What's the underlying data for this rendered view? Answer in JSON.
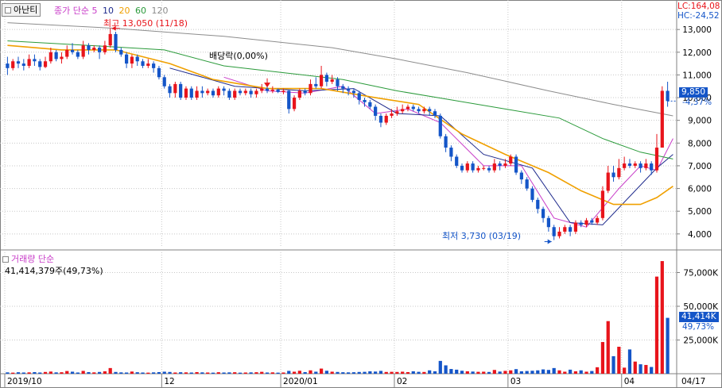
{
  "header": {
    "stock_name": "아난티",
    "price_legend": {
      "label": "종가 단순",
      "ma": [
        "5",
        "10",
        "20",
        "60",
        "120"
      ]
    },
    "lc": "LC:164,08",
    "hc": "HC:-24,52"
  },
  "volume_header": {
    "label": "거래량 단순",
    "value": "41,414,379주(49,73%)"
  },
  "badges": {
    "price": "9,850",
    "price_change": "-4,37%",
    "volume": "41,414K",
    "volume_pct": "49,73%"
  },
  "annotations": {
    "high": "최고 13,050 (11/18)",
    "dividend": "배당락(0,00%)",
    "low": "최저 3,730 (03/19)"
  },
  "colors": {
    "up": "#e8141b",
    "down": "#1455c8",
    "ma5": "#c83cc8",
    "ma10": "#1e2a8c",
    "ma20": "#f0a000",
    "ma60": "#2a9a3a",
    "ma120": "#8c8c8c",
    "grid": "#c8c8c8"
  },
  "chart_data": [
    {
      "type": "candlestick",
      "title": "아난티",
      "y_ticks": [
        "13,000",
        "12,000",
        "11,000",
        "10,000",
        "9,000",
        "8,000",
        "7,000",
        "6,000",
        "5,000",
        "4,000"
      ],
      "ylim": [
        3400,
        13600
      ],
      "x_tick_labels": [
        "2019/10",
        "12",
        "2020/01",
        "02",
        "03",
        "04",
        "04/17"
      ],
      "x_tick_index": [
        0,
        29,
        51,
        72,
        93,
        114
      ],
      "series_names": [
        "종가 단순 5",
        "10",
        "20",
        "60",
        "120"
      ],
      "candles": [
        [
          11500,
          11300,
          11800,
          11000
        ],
        [
          11300,
          11600,
          11700,
          11200
        ],
        [
          11600,
          11500,
          11800,
          11300
        ],
        [
          11500,
          11400,
          11700,
          11200
        ],
        [
          11400,
          11700,
          11900,
          11300
        ],
        [
          11700,
          11600,
          11900,
          11400
        ],
        [
          11600,
          11350,
          11700,
          11200
        ],
        [
          11350,
          11600,
          11800,
          11300
        ],
        [
          11600,
          12000,
          12200,
          11500
        ],
        [
          12000,
          11700,
          12100,
          11600
        ],
        [
          11700,
          11800,
          12000,
          11500
        ],
        [
          11800,
          12100,
          12300,
          11700
        ],
        [
          12100,
          12000,
          12400,
          11900
        ],
        [
          12000,
          11800,
          12100,
          11700
        ],
        [
          11800,
          12300,
          12500,
          11700
        ],
        [
          12300,
          12100,
          12400,
          11900
        ],
        [
          12100,
          12200,
          12300,
          12000
        ],
        [
          12200,
          12000,
          12300,
          11700
        ],
        [
          12000,
          12300,
          12500,
          11900
        ],
        [
          12300,
          12800,
          13050,
          12200
        ],
        [
          12800,
          12100,
          12900,
          12000
        ],
        [
          12100,
          11900,
          12200,
          11800
        ],
        [
          11900,
          11500,
          12000,
          11300
        ],
        [
          11500,
          11800,
          11900,
          11300
        ],
        [
          11800,
          11600,
          11900,
          11400
        ],
        [
          11600,
          11400,
          11700,
          11300
        ],
        [
          11400,
          11500,
          11700,
          11300
        ],
        [
          11500,
          11300,
          11600,
          11100
        ],
        [
          11300,
          10900,
          11400,
          10800
        ],
        [
          10900,
          10500,
          11000,
          10400
        ],
        [
          10500,
          10200,
          10600,
          10000
        ],
        [
          10200,
          10600,
          10700,
          10000
        ],
        [
          10600,
          10000,
          10700,
          9900
        ],
        [
          10000,
          10400,
          10500,
          9900
        ],
        [
          10400,
          10000,
          10500,
          9900
        ],
        [
          10000,
          10300,
          10500,
          9900
        ],
        [
          10300,
          10200,
          10500,
          10000
        ],
        [
          10200,
          10300,
          10400,
          10100
        ],
        [
          10300,
          10100,
          10400,
          10000
        ],
        [
          10100,
          10400,
          10500,
          10000
        ],
        [
          10400,
          10300,
          10500,
          10100
        ],
        [
          10300,
          10000,
          10400,
          9900
        ],
        [
          10000,
          10300,
          10400,
          9900
        ],
        [
          10300,
          10200,
          10400,
          10100
        ],
        [
          10200,
          10300,
          10400,
          10100
        ],
        [
          10300,
          10150,
          10400,
          10000
        ],
        [
          10150,
          10300,
          10400,
          10000
        ],
        [
          10300,
          10400,
          10600,
          10200
        ],
        [
          10400,
          10300,
          10500,
          10200
        ],
        [
          10300,
          10350,
          10500,
          10200
        ],
        [
          10350,
          10250,
          10400,
          10200
        ],
        [
          10250,
          10300,
          10400,
          10150
        ],
        [
          10300,
          9500,
          10350,
          9300
        ],
        [
          9500,
          10000,
          10100,
          9400
        ],
        [
          10000,
          10300,
          10400,
          9900
        ],
        [
          10300,
          10200,
          10400,
          10100
        ],
        [
          10200,
          10600,
          10800,
          10100
        ],
        [
          10600,
          10500,
          10900,
          10400
        ],
        [
          10500,
          11000,
          11400,
          10400
        ],
        [
          11000,
          10700,
          11100,
          10500
        ],
        [
          10700,
          10800,
          11000,
          10600
        ],
        [
          10800,
          10500,
          10900,
          10300
        ],
        [
          10500,
          10400,
          10600,
          10200
        ],
        [
          10400,
          10300,
          10500,
          10100
        ],
        [
          10300,
          10200,
          10400,
          10000
        ],
        [
          10200,
          9900,
          10300,
          9700
        ],
        [
          9900,
          9800,
          10000,
          9600
        ],
        [
          9800,
          9600,
          9900,
          9500
        ],
        [
          9600,
          9200,
          9700,
          9000
        ],
        [
          9200,
          8900,
          9300,
          8700
        ],
        [
          8900,
          9200,
          9300,
          8800
        ],
        [
          9200,
          9300,
          9500,
          9100
        ],
        [
          9300,
          9400,
          9600,
          9200
        ],
        [
          9400,
          9500,
          9700,
          9300
        ],
        [
          9500,
          9600,
          9700,
          9400
        ],
        [
          9600,
          9500,
          9700,
          9400
        ],
        [
          9500,
          9400,
          9600,
          9300
        ],
        [
          9400,
          9500,
          9600,
          9300
        ],
        [
          9500,
          9400,
          9600,
          9200
        ],
        [
          9400,
          9200,
          9500,
          9100
        ],
        [
          9200,
          8300,
          9300,
          8200
        ],
        [
          8300,
          7800,
          8400,
          7600
        ],
        [
          7800,
          7400,
          7900,
          7200
        ],
        [
          7400,
          7000,
          7500,
          6900
        ],
        [
          7000,
          6800,
          7100,
          6700
        ],
        [
          6800,
          7100,
          7200,
          6700
        ],
        [
          7100,
          6800,
          7200,
          6700
        ],
        [
          6800,
          6900,
          7000,
          6700
        ],
        [
          6900,
          6900,
          7000,
          6800
        ],
        [
          6900,
          6800,
          7000,
          6700
        ],
        [
          6800,
          7100,
          7300,
          6700
        ],
        [
          7100,
          7000,
          7200,
          6800
        ],
        [
          7000,
          7100,
          7300,
          6900
        ],
        [
          7100,
          7400,
          7500,
          7000
        ],
        [
          7400,
          6700,
          7500,
          6600
        ],
        [
          6700,
          6400,
          6800,
          6200
        ],
        [
          6400,
          6000,
          6500,
          5900
        ],
        [
          6000,
          5500,
          6100,
          5400
        ],
        [
          5500,
          5100,
          5600,
          4900
        ],
        [
          5100,
          4700,
          5200,
          4500
        ],
        [
          4700,
          4300,
          4800,
          4100
        ],
        [
          4300,
          3900,
          4400,
          3730
        ],
        [
          3900,
          4100,
          4300,
          3800
        ],
        [
          4100,
          4300,
          4400,
          4000
        ],
        [
          4300,
          4100,
          4400,
          3900
        ],
        [
          4100,
          4500,
          4600,
          4000
        ],
        [
          4500,
          4400,
          4600,
          4300
        ],
        [
          4400,
          4600,
          4700,
          4300
        ],
        [
          4600,
          4500,
          4700,
          4400
        ],
        [
          4500,
          4700,
          4800,
          4400
        ],
        [
          4700,
          5900,
          6100,
          4600
        ],
        [
          5900,
          6700,
          7000,
          5800
        ],
        [
          6700,
          6500,
          7000,
          6300
        ],
        [
          6500,
          6900,
          7300,
          6400
        ],
        [
          6900,
          7100,
          7400,
          6800
        ],
        [
          7100,
          7000,
          7300,
          6900
        ],
        [
          7000,
          7100,
          7200,
          6900
        ],
        [
          7100,
          6900,
          7200,
          6700
        ],
        [
          6900,
          7100,
          7300,
          6800
        ],
        [
          7100,
          6800,
          7200,
          6600
        ],
        [
          6800,
          7800,
          8400,
          6700
        ],
        [
          7800,
          10300,
          10500,
          7800
        ],
        [
          10300,
          9850,
          10700,
          9600
        ]
      ],
      "ma": {
        "5": {
          "color_key": "ma5",
          "points": [
            [
              40,
              10900
            ],
            [
              48,
              10300
            ],
            [
              55,
              10200
            ],
            [
              62,
              10500
            ],
            [
              68,
              9300
            ],
            [
              74,
              9500
            ],
            [
              80,
              8900
            ],
            [
              88,
              7000
            ],
            [
              95,
              7000
            ],
            [
              101,
              4700
            ],
            [
              107,
              4300
            ],
            [
              113,
              6000
            ],
            [
              117,
              7000
            ],
            [
              120,
              6800
            ],
            [
              123,
              8200
            ]
          ]
        },
        "10": {
          "color_key": "ma10",
          "points": [
            [
              30,
              11300
            ],
            [
              42,
              10500
            ],
            [
              55,
              10300
            ],
            [
              64,
              10400
            ],
            [
              72,
              9300
            ],
            [
              80,
              9200
            ],
            [
              88,
              7500
            ],
            [
              97,
              6900
            ],
            [
              104,
              4500
            ],
            [
              110,
              4400
            ],
            [
              116,
              5900
            ],
            [
              120,
              6900
            ],
            [
              123,
              7500
            ]
          ]
        },
        "20": {
          "color_key": "ma20",
          "points": [
            [
              0,
              12300
            ],
            [
              10,
              12100
            ],
            [
              20,
              12100
            ],
            [
              30,
              11500
            ],
            [
              38,
              10800
            ],
            [
              48,
              10400
            ],
            [
              58,
              10400
            ],
            [
              68,
              10000
            ],
            [
              76,
              9700
            ],
            [
              84,
              8400
            ],
            [
              92,
              7500
            ],
            [
              100,
              6700
            ],
            [
              106,
              5900
            ],
            [
              112,
              5300
            ],
            [
              117,
              5300
            ],
            [
              120,
              5600
            ],
            [
              123,
              6100
            ]
          ]
        },
        "60": {
          "color_key": "ma60",
          "points": [
            [
              0,
              12500
            ],
            [
              15,
              12300
            ],
            [
              29,
              12100
            ],
            [
              40,
              11400
            ],
            [
              51,
              11100
            ],
            [
              62,
              10800
            ],
            [
              72,
              10300
            ],
            [
              82,
              9900
            ],
            [
              92,
              9500
            ],
            [
              102,
              9100
            ],
            [
              110,
              8200
            ],
            [
              117,
              7600
            ],
            [
              123,
              7300
            ]
          ]
        },
        "120": {
          "color_key": "ma120",
          "points": [
            [
              0,
              13300
            ],
            [
              20,
              13050
            ],
            [
              40,
              12700
            ],
            [
              60,
              12200
            ],
            [
              72,
              11700
            ],
            [
              85,
              11100
            ],
            [
              100,
              10300
            ],
            [
              112,
              9700
            ],
            [
              123,
              9200
            ]
          ]
        }
      }
    },
    {
      "type": "bar",
      "title": "거래량 단순",
      "y_ticks": [
        "75,000K",
        "50,000K",
        "25,000K"
      ],
      "ylim": [
        0,
        90000
      ],
      "unit": "K",
      "values": [
        1000,
        800,
        1100,
        900,
        1000,
        1200,
        900,
        1300,
        1600,
        1000,
        1100,
        2000,
        1500,
        900,
        2100,
        1200,
        1000,
        1300,
        1800,
        4200,
        1300,
        1000,
        900,
        1600,
        1100,
        900,
        800,
        1000,
        1200,
        1500,
        1300,
        900,
        1100,
        1000,
        900,
        1200,
        1000,
        900,
        800,
        1100,
        900,
        1000,
        1100,
        800,
        900,
        1000,
        1100,
        1400,
        900,
        1000,
        800,
        900,
        2100,
        1500,
        2200,
        1200,
        2500,
        1500,
        3800,
        2200,
        1500,
        1300,
        1100,
        1000,
        1100,
        1300,
        1400,
        1800,
        1600,
        2100,
        1300,
        1400,
        1300,
        1500,
        1200,
        1800,
        1400,
        1300,
        2500,
        1800,
        9500,
        6200,
        3500,
        3000,
        2200,
        1800,
        1600,
        1400,
        1500,
        1300,
        2800,
        1600,
        2100,
        2500,
        3400,
        1800,
        2000,
        2200,
        2500,
        3200,
        2800,
        4200,
        2500,
        1500,
        3000,
        1800,
        2500,
        1500,
        2000,
        4800,
        23500,
        39000,
        13000,
        20000,
        4500,
        18000,
        9000,
        7000,
        6500,
        5000,
        72000,
        83500,
        41414
      ]
    }
  ]
}
